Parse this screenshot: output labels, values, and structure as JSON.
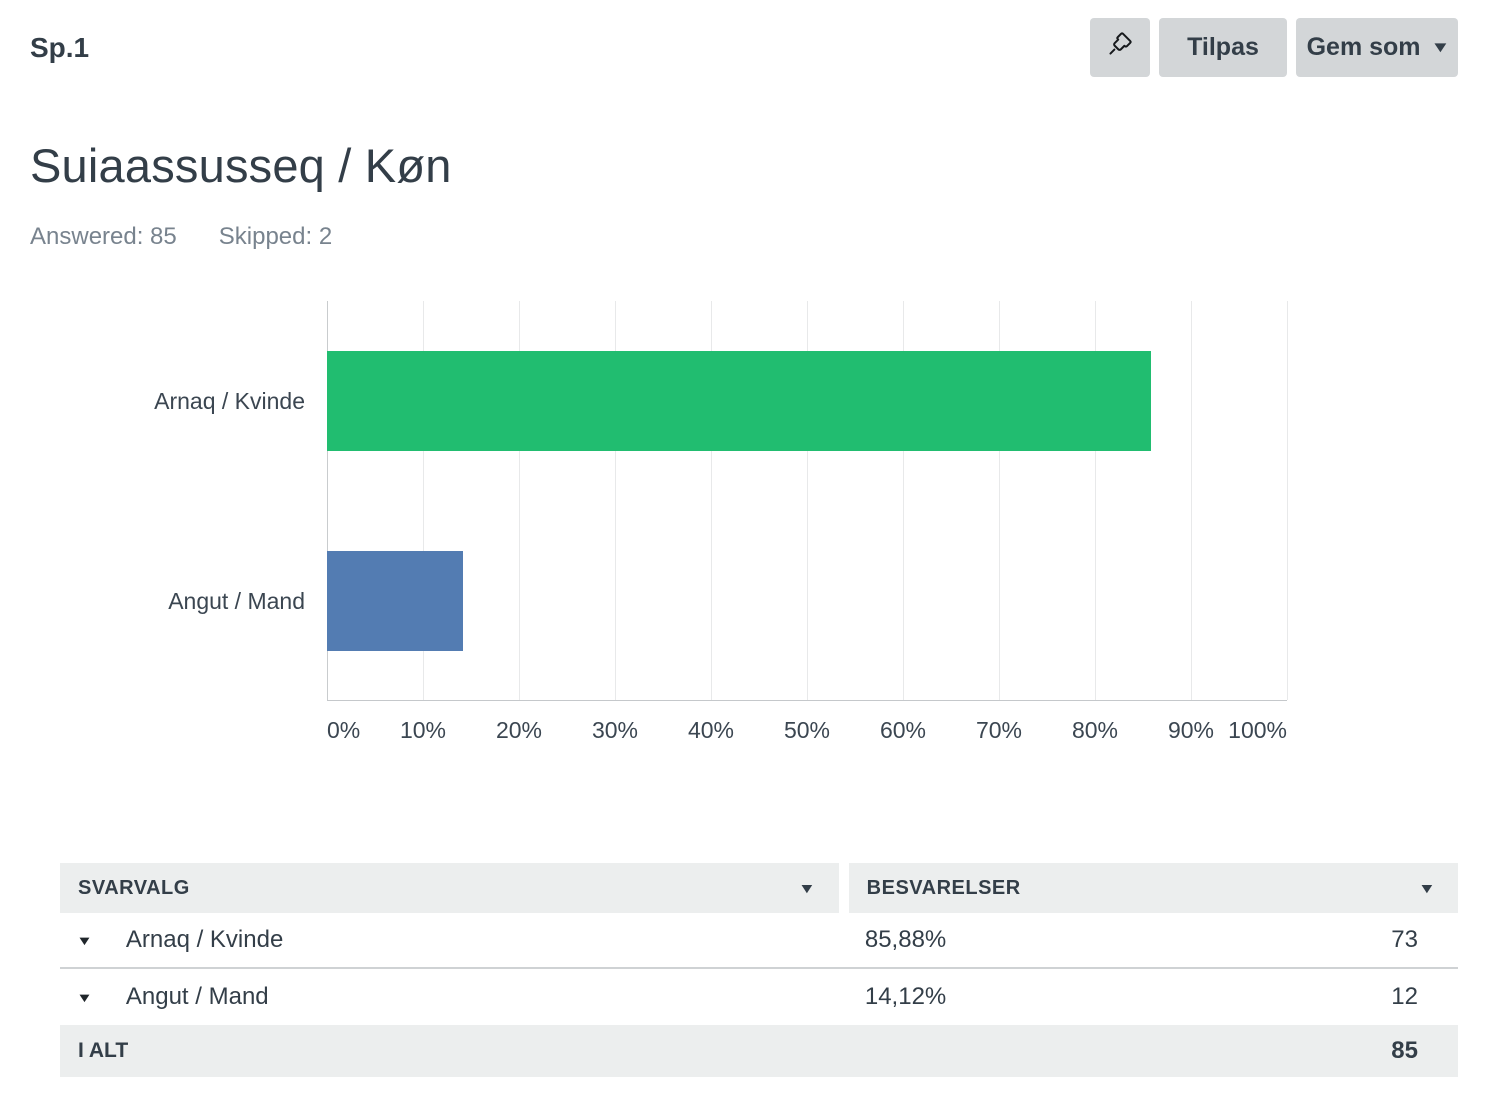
{
  "header": {
    "question_number": "Sp.1",
    "customize_label": "Tilpas",
    "save_as_label": "Gem som"
  },
  "title": "Suiaassusseq / Køn",
  "stats": {
    "answered": "Answered: 85",
    "skipped": "Skipped: 2"
  },
  "chart_data": {
    "type": "bar",
    "orientation": "horizontal",
    "title": "Suiaassusseq / Køn",
    "categories": [
      "Arnaq / Kvinde",
      "Angut / Mand"
    ],
    "values": [
      85.88,
      14.12
    ],
    "counts": [
      73,
      12
    ],
    "series_colors": [
      "#21bd70",
      "#537cb2"
    ],
    "xlim": [
      0,
      100
    ],
    "grid": true,
    "x_ticks": [
      "0%",
      "10%",
      "20%",
      "30%",
      "40%",
      "50%",
      "60%",
      "70%",
      "80%",
      "90%",
      "100%"
    ]
  },
  "table": {
    "columns": [
      "SVARVALG",
      "BESVARELSER"
    ],
    "rows": [
      {
        "choice": "Arnaq / Kvinde",
        "percent": "85,88%",
        "count": "73"
      },
      {
        "choice": "Angut / Mand",
        "percent": "14,12%",
        "count": "12"
      }
    ],
    "total": {
      "label": "I ALT",
      "count": "85"
    }
  },
  "colors": {
    "bar_green": "#21bd70",
    "bar_blue": "#537cb2",
    "text_dark": "#333e48",
    "text_gray": "#78838e",
    "button_bg": "#d3d6d8",
    "table_header_bg": "#eceeee"
  }
}
